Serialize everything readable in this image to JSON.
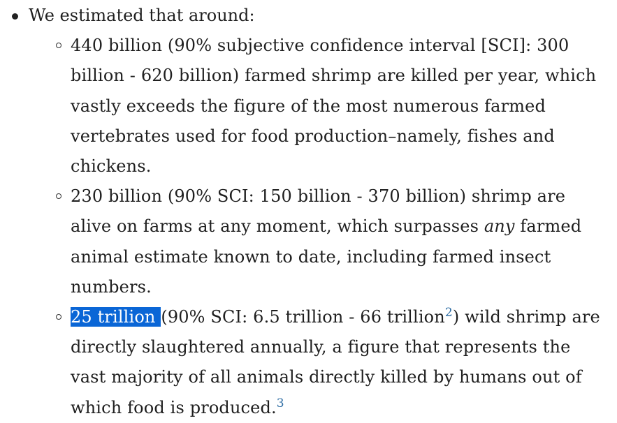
{
  "intro": "We estimated that around:",
  "items": [
    {
      "text": "440 billion (90% subjective confidence interval [SCI]: 300 billion - 620 billion) farmed shrimp are killed per year, which vastly exceeds the figure of the most numerous farmed vertebrates used for food production–namely, fishes and chickens."
    },
    {
      "before": "230 billion (90% SCI: 150 billion - 370 billion) shrimp are alive on farms at any moment, which surpasses ",
      "emph": "any",
      "after": " farmed animal estimate known to date, including farmed insect numbers."
    },
    {
      "highlight": "25 trillion ",
      "before": "(90% SCI: 6.5 trillion - 66 trillion",
      "footnote_a": "2",
      "after": ") wild shrimp are directly slaughtered annually, a figure that represents the vast majority of all animals directly killed by humans out of which food is produced.",
      "footnote_b": "3"
    }
  ]
}
